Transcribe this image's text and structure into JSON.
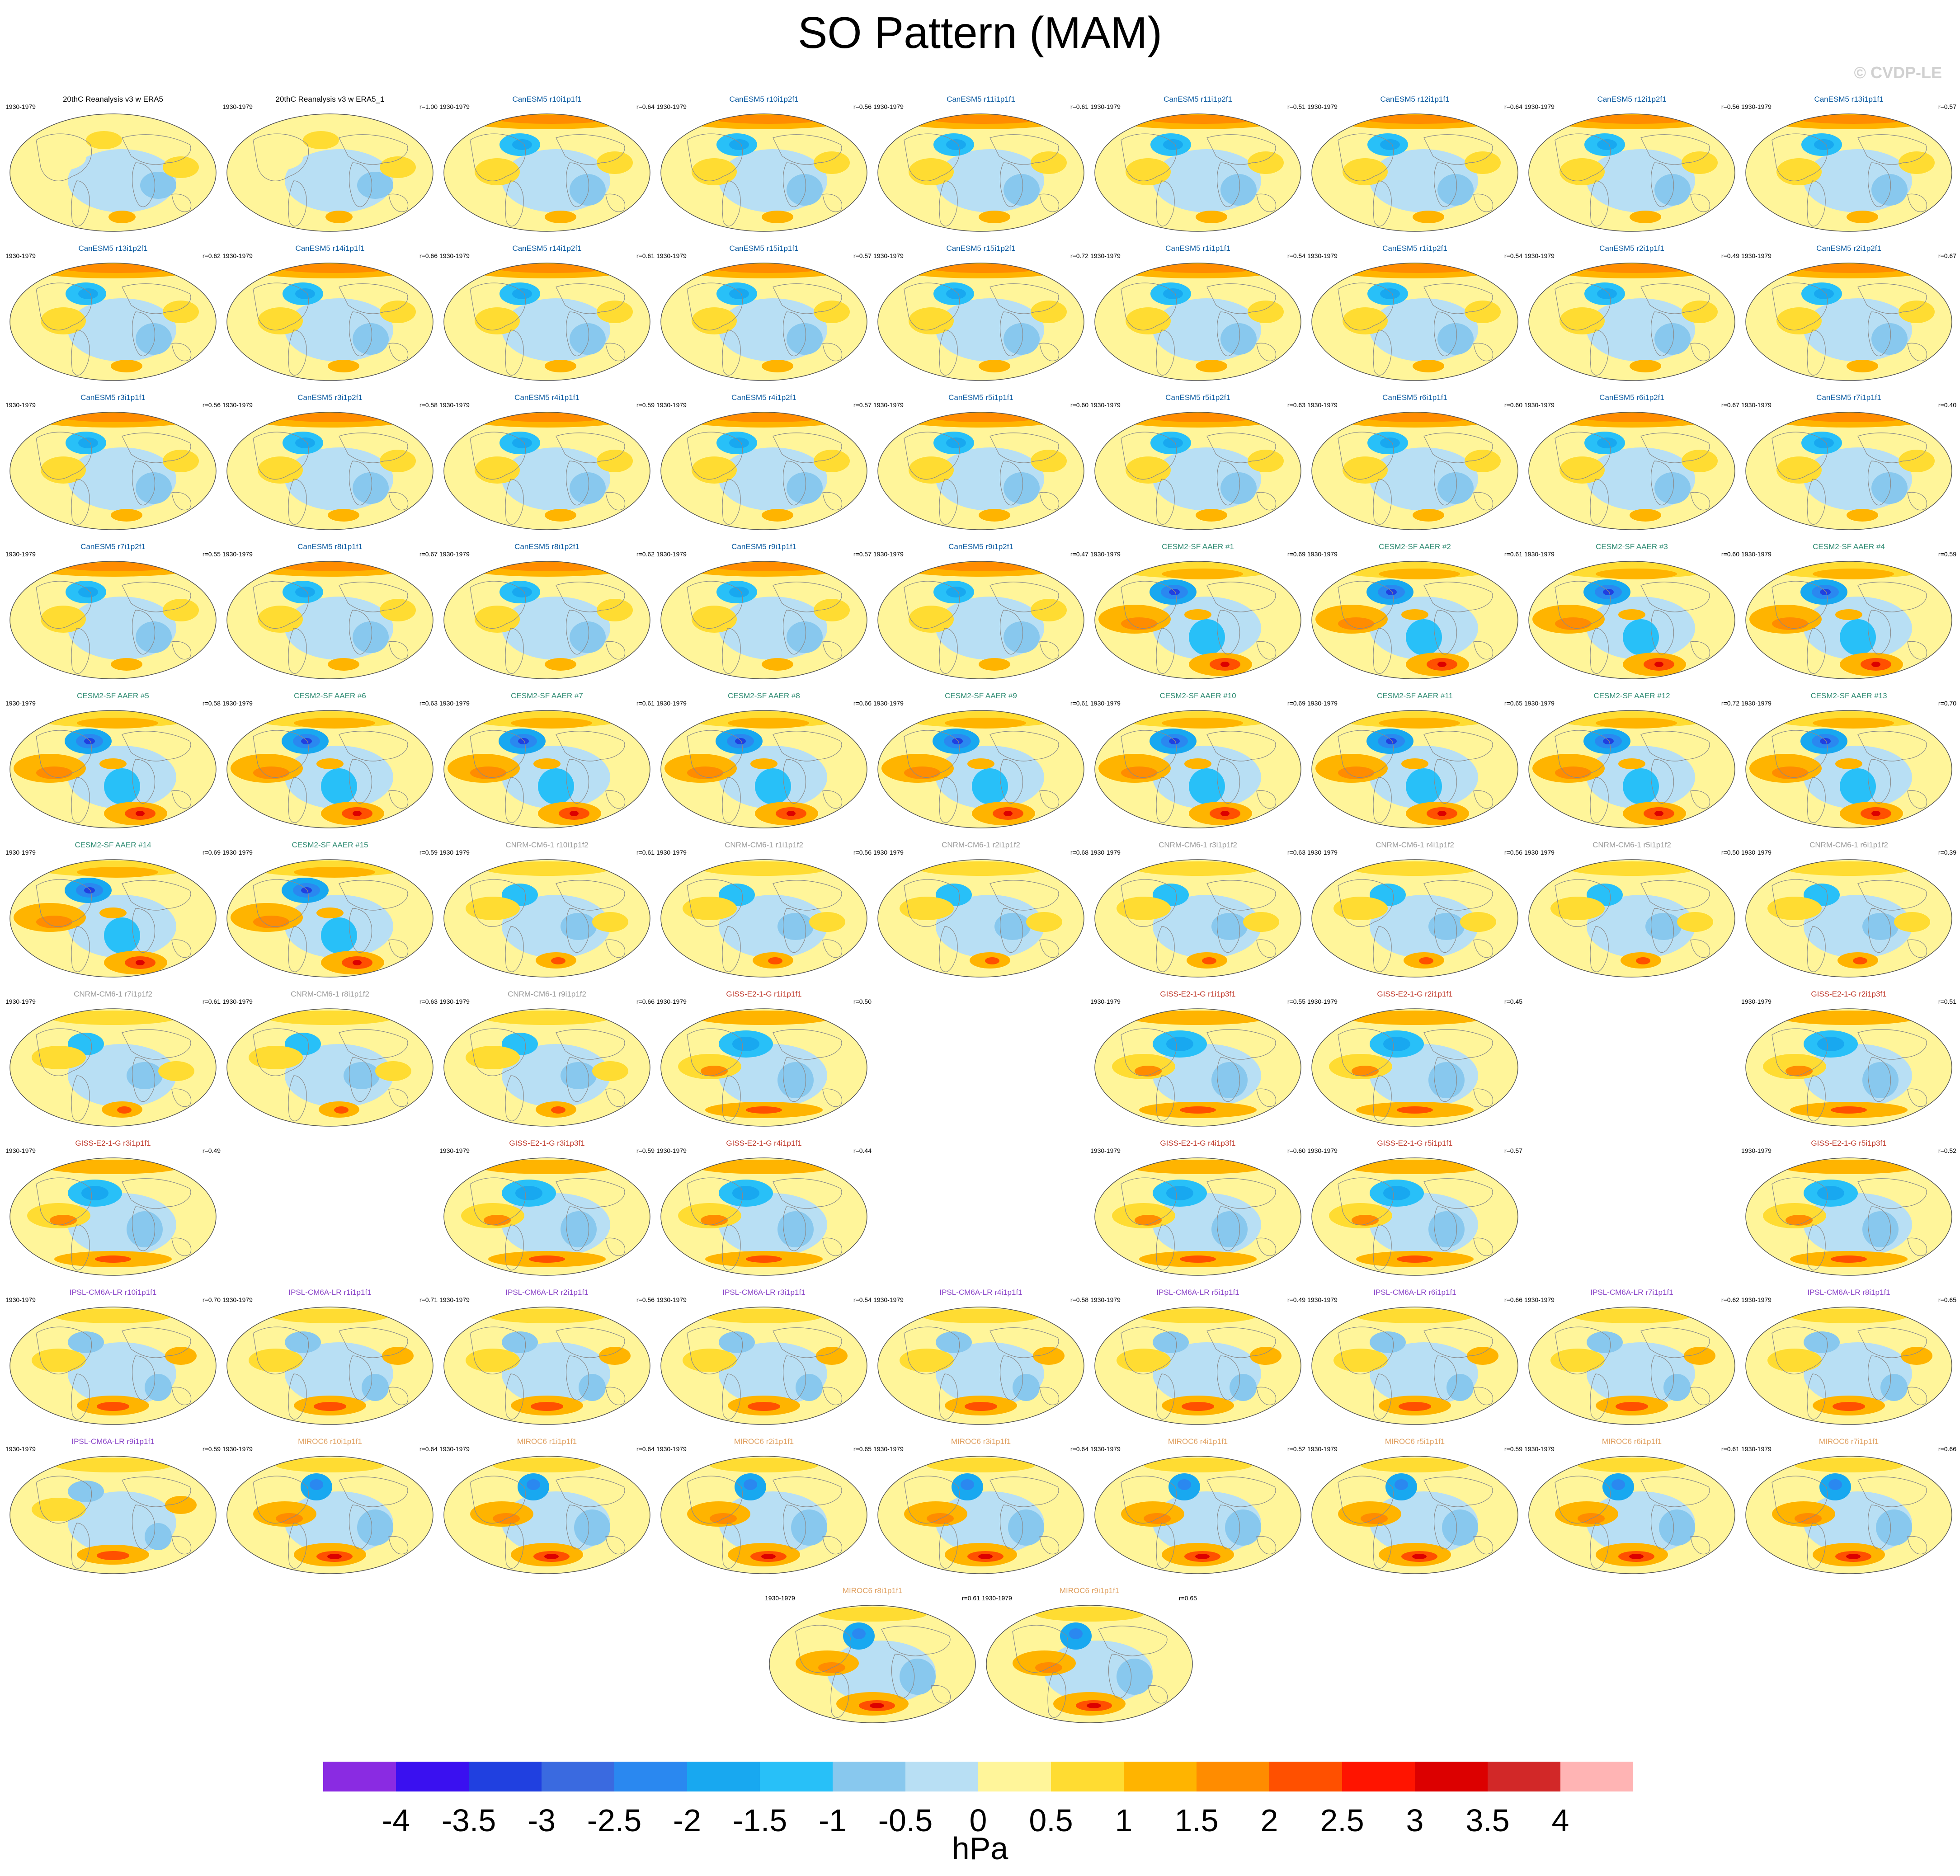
{
  "title": "SO Pattern (MAM)",
  "credit": "© CVDP-LE",
  "period": "1930-1979",
  "colors": {
    "CanESM5": "#0a5aa0",
    "CESM2": "#2e8b72",
    "CNRM": "#9a9a9a",
    "GISS": "#c0392b",
    "IPSL": "#8a44c8",
    "MIROC6": "#e0a060",
    "obs": "#000000"
  },
  "panels": [
    {
      "name": "20thC Reanalysis v3 w ERA5",
      "r": "",
      "model": "obs",
      "style": "ref"
    },
    {
      "name": "20thC Reanalysis v3 w ERA5_1",
      "r": "r=1.00",
      "model": "obs",
      "style": "ref"
    },
    {
      "name": "CanESM5 r10i1p1f1",
      "r": "r=0.64",
      "model": "CanESM5",
      "style": "canesm"
    },
    {
      "name": "CanESM5 r10i1p2f1",
      "r": "r=0.56",
      "model": "CanESM5",
      "style": "canesm"
    },
    {
      "name": "CanESM5 r11i1p1f1",
      "r": "r=0.61",
      "model": "CanESM5",
      "style": "canesm"
    },
    {
      "name": "CanESM5 r11i1p2f1",
      "r": "r=0.51",
      "model": "CanESM5",
      "style": "canesm"
    },
    {
      "name": "CanESM5 r12i1p1f1",
      "r": "r=0.64",
      "model": "CanESM5",
      "style": "canesm"
    },
    {
      "name": "CanESM5 r12i1p2f1",
      "r": "r=0.56",
      "model": "CanESM5",
      "style": "canesm"
    },
    {
      "name": "CanESM5 r13i1p1f1",
      "r": "r=0.57",
      "model": "CanESM5",
      "style": "canesm"
    },
    {
      "name": "CanESM5 r13i1p2f1",
      "r": "r=0.62",
      "model": "CanESM5",
      "style": "canesm"
    },
    {
      "name": "CanESM5 r14i1p1f1",
      "r": "r=0.66",
      "model": "CanESM5",
      "style": "canesm"
    },
    {
      "name": "CanESM5 r14i1p2f1",
      "r": "r=0.61",
      "model": "CanESM5",
      "style": "canesm"
    },
    {
      "name": "CanESM5 r15i1p1f1",
      "r": "r=0.57",
      "model": "CanESM5",
      "style": "canesm"
    },
    {
      "name": "CanESM5 r15i1p2f1",
      "r": "r=0.72",
      "model": "CanESM5",
      "style": "canesm"
    },
    {
      "name": "CanESM5 r1i1p1f1",
      "r": "r=0.54",
      "model": "CanESM5",
      "style": "canesm"
    },
    {
      "name": "CanESM5 r1i1p2f1",
      "r": "r=0.54",
      "model": "CanESM5",
      "style": "canesm"
    },
    {
      "name": "CanESM5 r2i1p1f1",
      "r": "r=0.49",
      "model": "CanESM5",
      "style": "canesm"
    },
    {
      "name": "CanESM5 r2i1p2f1",
      "r": "r=0.67",
      "model": "CanESM5",
      "style": "canesm"
    },
    {
      "name": "CanESM5 r3i1p1f1",
      "r": "r=0.56",
      "model": "CanESM5",
      "style": "canesm"
    },
    {
      "name": "CanESM5 r3i1p2f1",
      "r": "r=0.58",
      "model": "CanESM5",
      "style": "canesm"
    },
    {
      "name": "CanESM5 r4i1p1f1",
      "r": "r=0.59",
      "model": "CanESM5",
      "style": "canesm"
    },
    {
      "name": "CanESM5 r4i1p2f1",
      "r": "r=0.57",
      "model": "CanESM5",
      "style": "canesm"
    },
    {
      "name": "CanESM5 r5i1p1f1",
      "r": "r=0.60",
      "model": "CanESM5",
      "style": "canesm"
    },
    {
      "name": "CanESM5 r5i1p2f1",
      "r": "r=0.63",
      "model": "CanESM5",
      "style": "canesm"
    },
    {
      "name": "CanESM5 r6i1p1f1",
      "r": "r=0.60",
      "model": "CanESM5",
      "style": "canesm"
    },
    {
      "name": "CanESM5 r6i1p2f1",
      "r": "r=0.67",
      "model": "CanESM5",
      "style": "canesm"
    },
    {
      "name": "CanESM5 r7i1p1f1",
      "r": "r=0.40",
      "model": "CanESM5",
      "style": "canesm"
    },
    {
      "name": "CanESM5 r7i1p2f1",
      "r": "r=0.55",
      "model": "CanESM5",
      "style": "canesm"
    },
    {
      "name": "CanESM5 r8i1p1f1",
      "r": "r=0.67",
      "model": "CanESM5",
      "style": "canesm"
    },
    {
      "name": "CanESM5 r8i1p2f1",
      "r": "r=0.62",
      "model": "CanESM5",
      "style": "canesm"
    },
    {
      "name": "CanESM5 r9i1p1f1",
      "r": "r=0.57",
      "model": "CanESM5",
      "style": "canesm"
    },
    {
      "name": "CanESM5 r9i1p2f1",
      "r": "r=0.47",
      "model": "CanESM5",
      "style": "canesm"
    },
    {
      "name": "CESM2-SF AAER #1",
      "r": "r=0.69",
      "model": "CESM2",
      "style": "cesm"
    },
    {
      "name": "CESM2-SF AAER #2",
      "r": "r=0.61",
      "model": "CESM2",
      "style": "cesm"
    },
    {
      "name": "CESM2-SF AAER #3",
      "r": "r=0.60",
      "model": "CESM2",
      "style": "cesm"
    },
    {
      "name": "CESM2-SF AAER #4",
      "r": "r=0.59",
      "model": "CESM2",
      "style": "cesm"
    },
    {
      "name": "CESM2-SF AAER #5",
      "r": "r=0.58",
      "model": "CESM2",
      "style": "cesm"
    },
    {
      "name": "CESM2-SF AAER #6",
      "r": "r=0.63",
      "model": "CESM2",
      "style": "cesm"
    },
    {
      "name": "CESM2-SF AAER #7",
      "r": "r=0.61",
      "model": "CESM2",
      "style": "cesm"
    },
    {
      "name": "CESM2-SF AAER #8",
      "r": "r=0.66",
      "model": "CESM2",
      "style": "cesm"
    },
    {
      "name": "CESM2-SF AAER #9",
      "r": "r=0.61",
      "model": "CESM2",
      "style": "cesm"
    },
    {
      "name": "CESM2-SF AAER #10",
      "r": "r=0.69",
      "model": "CESM2",
      "style": "cesm"
    },
    {
      "name": "CESM2-SF AAER #11",
      "r": "r=0.65",
      "model": "CESM2",
      "style": "cesm"
    },
    {
      "name": "CESM2-SF AAER #12",
      "r": "r=0.72",
      "model": "CESM2",
      "style": "cesm"
    },
    {
      "name": "CESM2-SF AAER #13",
      "r": "r=0.70",
      "model": "CESM2",
      "style": "cesm"
    },
    {
      "name": "CESM2-SF AAER #14",
      "r": "r=0.69",
      "model": "CESM2",
      "style": "cesm"
    },
    {
      "name": "CESM2-SF AAER #15",
      "r": "r=0.59",
      "model": "CESM2",
      "style": "cesm"
    },
    {
      "name": "CNRM-CM6-1 r10i1p1f2",
      "r": "r=0.61",
      "model": "CNRM",
      "style": "cnrm"
    },
    {
      "name": "CNRM-CM6-1 r1i1p1f2",
      "r": "r=0.56",
      "model": "CNRM",
      "style": "cnrm"
    },
    {
      "name": "CNRM-CM6-1 r2i1p1f2",
      "r": "r=0.68",
      "model": "CNRM",
      "style": "cnrm"
    },
    {
      "name": "CNRM-CM6-1 r3i1p1f2",
      "r": "r=0.63",
      "model": "CNRM",
      "style": "cnrm"
    },
    {
      "name": "CNRM-CM6-1 r4i1p1f2",
      "r": "r=0.56",
      "model": "CNRM",
      "style": "cnrm"
    },
    {
      "name": "CNRM-CM6-1 r5i1p1f2",
      "r": "r=0.50",
      "model": "CNRM",
      "style": "cnrm"
    },
    {
      "name": "CNRM-CM6-1 r6i1p1f2",
      "r": "r=0.39",
      "model": "CNRM",
      "style": "cnrm"
    },
    {
      "name": "CNRM-CM6-1 r7i1p1f2",
      "r": "r=0.61",
      "model": "CNRM",
      "style": "cnrm"
    },
    {
      "name": "CNRM-CM6-1 r8i1p1f2",
      "r": "r=0.63",
      "model": "CNRM",
      "style": "cnrm"
    },
    {
      "name": "CNRM-CM6-1 r9i1p1f2",
      "r": "r=0.66",
      "model": "CNRM",
      "style": "cnrm"
    },
    {
      "name": "GISS-E2-1-G r1i1p1f1",
      "r": "r=0.50",
      "model": "GISS",
      "style": "giss"
    },
    {
      "name": "GISS-E2-1-G r1i1p3f1",
      "r": "r=0.55",
      "model": "GISS",
      "style": "giss"
    },
    {
      "name": "GISS-E2-1-G r2i1p1f1",
      "r": "r=0.45",
      "model": "GISS",
      "style": "giss"
    },
    {
      "name": "GISS-E2-1-G r2i1p3f1",
      "r": "r=0.51",
      "model": "GISS",
      "style": "giss"
    },
    {
      "name": "GISS-E2-1-G r3i1p1f1",
      "r": "r=0.49",
      "model": "GISS",
      "style": "giss"
    },
    {
      "name": "GISS-E2-1-G r3i1p3f1",
      "r": "r=0.59",
      "model": "GISS",
      "style": "giss"
    },
    {
      "name": "GISS-E2-1-G r4i1p1f1",
      "r": "r=0.44",
      "model": "GISS",
      "style": "giss"
    },
    {
      "name": "GISS-E2-1-G r4i1p3f1",
      "r": "r=0.60",
      "model": "GISS",
      "style": "giss"
    },
    {
      "name": "GISS-E2-1-G r5i1p1f1",
      "r": "r=0.57",
      "model": "GISS",
      "style": "giss"
    },
    {
      "name": "GISS-E2-1-G r5i1p3f1",
      "r": "r=0.52",
      "model": "GISS",
      "style": "giss"
    },
    {
      "name": "IPSL-CM6A-LR r10i1p1f1",
      "r": "r=0.70",
      "model": "IPSL",
      "style": "ipsl"
    },
    {
      "name": "IPSL-CM6A-LR r1i1p1f1",
      "r": "r=0.71",
      "model": "IPSL",
      "style": "ipsl"
    },
    {
      "name": "IPSL-CM6A-LR r2i1p1f1",
      "r": "r=0.56",
      "model": "IPSL",
      "style": "ipsl"
    },
    {
      "name": "IPSL-CM6A-LR r3i1p1f1",
      "r": "r=0.54",
      "model": "IPSL",
      "style": "ipsl"
    },
    {
      "name": "IPSL-CM6A-LR r4i1p1f1",
      "r": "r=0.58",
      "model": "IPSL",
      "style": "ipsl"
    },
    {
      "name": "IPSL-CM6A-LR r5i1p1f1",
      "r": "r=0.49",
      "model": "IPSL",
      "style": "ipsl"
    },
    {
      "name": "IPSL-CM6A-LR r6i1p1f1",
      "r": "r=0.66",
      "model": "IPSL",
      "style": "ipsl"
    },
    {
      "name": "IPSL-CM6A-LR r7i1p1f1",
      "r": "r=0.62",
      "model": "IPSL",
      "style": "ipsl"
    },
    {
      "name": "IPSL-CM6A-LR r8i1p1f1",
      "r": "r=0.65",
      "model": "IPSL",
      "style": "ipsl"
    },
    {
      "name": "IPSL-CM6A-LR r9i1p1f1",
      "r": "r=0.59",
      "model": "IPSL",
      "style": "ipsl"
    },
    {
      "name": "MIROC6 r10i1p1f1",
      "r": "r=0.64",
      "model": "MIROC6",
      "style": "miroc"
    },
    {
      "name": "MIROC6 r1i1p1f1",
      "r": "r=0.64",
      "model": "MIROC6",
      "style": "miroc"
    },
    {
      "name": "MIROC6 r2i1p1f1",
      "r": "r=0.65",
      "model": "MIROC6",
      "style": "miroc"
    },
    {
      "name": "MIROC6 r3i1p1f1",
      "r": "r=0.64",
      "model": "MIROC6",
      "style": "miroc"
    },
    {
      "name": "MIROC6 r4i1p1f1",
      "r": "r=0.52",
      "model": "MIROC6",
      "style": "miroc"
    },
    {
      "name": "MIROC6 r5i1p1f1",
      "r": "r=0.59",
      "model": "MIROC6",
      "style": "miroc"
    },
    {
      "name": "MIROC6 r6i1p1f1",
      "r": "r=0.61",
      "model": "MIROC6",
      "style": "miroc"
    },
    {
      "name": "MIROC6 r7i1p1f1",
      "r": "r=0.66",
      "model": "MIROC6",
      "style": "miroc"
    },
    {
      "name": "MIROC6 r8i1p1f1",
      "r": "r=0.61",
      "model": "MIROC6",
      "style": "miroc"
    },
    {
      "name": "MIROC6 r9i1p1f1",
      "r": "r=0.65",
      "model": "MIROC6",
      "style": "miroc"
    }
  ],
  "colorbar": {
    "colors": [
      "#8a2be2",
      "#3a10f0",
      "#2040e0",
      "#3a6ae0",
      "#2a88f0",
      "#18a8f0",
      "#28c0f8",
      "#88c8ee",
      "#b8dff4",
      "#fff59a",
      "#ffdc32",
      "#ffb400",
      "#ff8c00",
      "#ff5000",
      "#ff1400",
      "#dc0000",
      "#d22828",
      "#ffb4b4"
    ],
    "labels": [
      "-4",
      "-3.5",
      "-3",
      "-2.5",
      "-2",
      "-1.5",
      "-1",
      "-0.5",
      "0",
      "0.5",
      "1",
      "1.5",
      "2",
      "2.5",
      "3",
      "3.5",
      "4"
    ],
    "units": "hPa"
  }
}
